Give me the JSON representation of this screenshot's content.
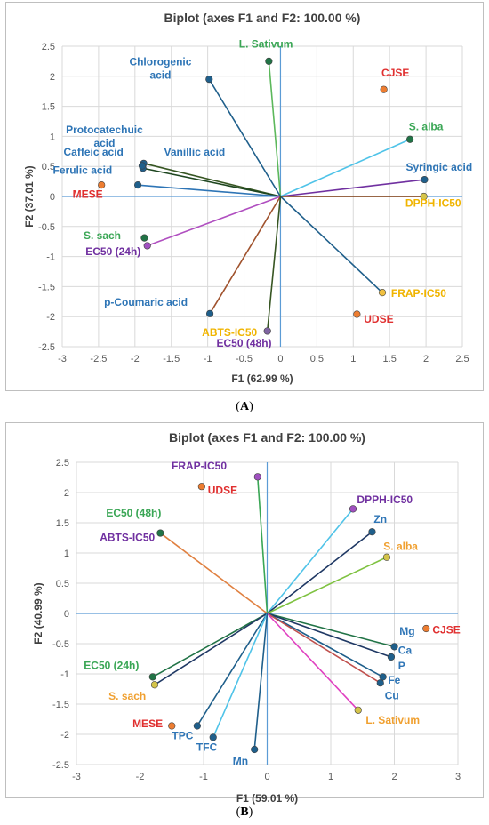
{
  "chart_data": [
    {
      "panel": "A",
      "type": "scatter",
      "title": "Biplot (axes F1 and F2: 100.00 %)",
      "xlabel": "F1 (62.99 %)",
      "ylabel": "F2 (37.01 %)",
      "xlim": [
        -3,
        2.5
      ],
      "ylim": [
        -2.5,
        2.5
      ],
      "xticks": [
        "-3",
        "-2.5",
        "-2",
        "-1.5",
        "-1",
        "-0.5",
        "0",
        "0.5",
        "1",
        "1.5",
        "2",
        "2.5"
      ],
      "yticks": [
        "2.5",
        "2",
        "1.5",
        "1",
        "0.5",
        "0",
        "-0.5",
        "-1",
        "-1.5",
        "-2",
        "-2.5"
      ],
      "grid": true,
      "points": [
        {
          "label": "L. Sativum",
          "x": -0.16,
          "y": 2.25,
          "marker": "#217346",
          "line": "#5cb85c",
          "text": "#3aa655",
          "vector": true
        },
        {
          "label": "Chlorogenic acid",
          "x": -0.98,
          "y": 1.95,
          "marker": "#1f5f8b",
          "line": "#1f5f8b",
          "text": "#2e75b6",
          "vector": true
        },
        {
          "label": "CJSE",
          "x": 1.42,
          "y": 1.78,
          "marker": "#ed7d31",
          "line": null,
          "text": "#e03030",
          "vector": false
        },
        {
          "label": "S. alba",
          "x": 1.78,
          "y": 0.95,
          "marker": "#217346",
          "line": "#4fc3e8",
          "text": "#3aa655",
          "vector": true
        },
        {
          "label": "Protocatechuic acid",
          "x": -1.88,
          "y": 0.55,
          "marker": "#1f5f8b",
          "line": "#375623",
          "text": "#2e75b6",
          "vector": true
        },
        {
          "label": "Caffeic acid",
          "x": -1.89,
          "y": 0.47,
          "marker": "#1f5f8b",
          "line": "#1e4620",
          "text": "#2e75b6",
          "vector": true
        },
        {
          "label": "Vanillic acid",
          "x": -1.9,
          "y": 0.51,
          "marker": "#1f5f8b",
          "line": null,
          "text": "#2e75b6",
          "vector": false
        },
        {
          "label": "Ferulic acid",
          "x": -1.96,
          "y": 0.19,
          "marker": "#1f5f8b",
          "line": "#2e75b6",
          "text": "#2e75b6",
          "vector": true
        },
        {
          "label": "MESE",
          "x": -2.46,
          "y": 0.19,
          "marker": "#ed7d31",
          "line": null,
          "text": "#e03030",
          "vector": false
        },
        {
          "label": "Syringic acid",
          "x": 1.98,
          "y": 0.28,
          "marker": "#1f5f8b",
          "line": "#7030a0",
          "text": "#2e75b6",
          "vector": true
        },
        {
          "label": "DPPH-IC50",
          "x": 1.97,
          "y": 0.0,
          "marker": "#d4c44a",
          "line": "#843c0c",
          "text": "#f0b400",
          "vector": true
        },
        {
          "label": "S. sach",
          "x": -1.87,
          "y": -0.69,
          "marker": "#217346",
          "line": null,
          "text": "#3aa655",
          "vector": false
        },
        {
          "label": "EC50 (24h)",
          "x": -1.83,
          "y": -0.82,
          "marker": "#a050c0",
          "line": "#b04fc0",
          "text": "#7030a0",
          "vector": true
        },
        {
          "label": "FRAP-IC50",
          "x": 1.4,
          "y": -1.6,
          "marker": "#f0c040",
          "line": "#1f5f8b",
          "text": "#f0b400",
          "vector": true
        },
        {
          "label": "UDSE",
          "x": 1.05,
          "y": -1.96,
          "marker": "#ed7d31",
          "line": null,
          "text": "#e03030",
          "vector": false
        },
        {
          "label": "p-Coumaric acid",
          "x": -0.97,
          "y": -1.95,
          "marker": "#1f5f8b",
          "line": "#a0522d",
          "text": "#2e75b6",
          "vector": true
        },
        {
          "label": "ABTS-IC50",
          "x": -0.18,
          "y": -2.24,
          "marker": "#8064a2",
          "line": "#375623",
          "text": "#f0b400",
          "vector": true
        },
        {
          "label": "EC50 (48h)",
          "x": -0.19,
          "y": -2.26,
          "marker": null,
          "line": null,
          "text": "#7030a0",
          "vector": false
        }
      ]
    },
    {
      "panel": "B",
      "type": "scatter",
      "title": "Biplot (axes F1 and F2: 100.00 %)",
      "xlabel": "F1 (59.01 %)",
      "ylabel": "F2 (40.99 %)",
      "xlim": [
        -3,
        3
      ],
      "ylim": [
        -2.5,
        2.5
      ],
      "xticks": [
        "-3",
        "-2",
        "-1",
        "0",
        "1",
        "2",
        "3"
      ],
      "yticks": [
        "2.5",
        "2",
        "1.5",
        "1",
        "0.5",
        "0",
        "-0.5",
        "-1",
        "-1.5",
        "-2",
        "-2.5"
      ],
      "grid": true,
      "points": [
        {
          "label": "FRAP-IC50",
          "x": -0.15,
          "y": 2.26,
          "marker": "#a050c0",
          "line": "#3aa655",
          "text": "#7030a0",
          "vector": true
        },
        {
          "label": "UDSE",
          "x": -1.03,
          "y": 2.1,
          "marker": "#ed7d31",
          "line": null,
          "text": "#e03030",
          "vector": false
        },
        {
          "label": "DPPH-IC50",
          "x": 1.35,
          "y": 1.73,
          "marker": "#a050c0",
          "line": "#4fc3e8",
          "text": "#7030a0",
          "vector": true
        },
        {
          "label": "Zn",
          "x": 1.65,
          "y": 1.35,
          "marker": "#1f5f8b",
          "line": "#1f3864",
          "text": "#2e75b6",
          "vector": true
        },
        {
          "label": "EC50 (48h)",
          "x": -1.68,
          "y": 1.33,
          "marker": "#217346",
          "line": "#e08040",
          "text": "#3aa655",
          "vector": true
        },
        {
          "label": "ABTS-IC50",
          "x": -1.7,
          "y": 1.33,
          "marker": null,
          "line": null,
          "text": "#7030a0",
          "vector": false
        },
        {
          "label": "S. alba",
          "x": 1.88,
          "y": 0.93,
          "marker": "#d4c44a",
          "line": "#7fc241",
          "text": "#f0a030",
          "vector": true
        },
        {
          "label": "Mg",
          "x": 2.0,
          "y": -0.55,
          "marker": "#1f5f8b",
          "line": "#217346",
          "text": "#2e75b6",
          "vector": true
        },
        {
          "label": "CJSE",
          "x": 2.5,
          "y": -0.25,
          "marker": "#ed7d31",
          "line": null,
          "text": "#e03030",
          "vector": false
        },
        {
          "label": "Ca",
          "x": 1.95,
          "y": -0.72,
          "marker": "#1f5f8b",
          "line": "#1f3864",
          "text": "#2e75b6",
          "vector": true
        },
        {
          "label": "P",
          "x": 1.92,
          "y": -0.8,
          "marker": null,
          "line": null,
          "text": "#2e75b6",
          "vector": false
        },
        {
          "label": "Fe",
          "x": 1.82,
          "y": -1.05,
          "marker": "#1f5f8b",
          "line": "#1f5f8b",
          "text": "#2e75b6",
          "vector": true
        },
        {
          "label": "Cu",
          "x": 1.78,
          "y": -1.15,
          "marker": "#1f5f8b",
          "line": "#c0504d",
          "text": "#2e75b6",
          "vector": true
        },
        {
          "label": "L. Sativum",
          "x": 1.43,
          "y": -1.6,
          "marker": "#d4c44a",
          "line": "#e040c0",
          "text": "#f0a030",
          "vector": true
        },
        {
          "label": "EC50 (24h)",
          "x": -1.8,
          "y": -1.05,
          "marker": "#217346",
          "line": "#217346",
          "text": "#3aa655",
          "vector": true
        },
        {
          "label": "S. sach",
          "x": -1.77,
          "y": -1.18,
          "marker": "#d4c44a",
          "line": "#1f3864",
          "text": "#f0a030",
          "vector": true
        },
        {
          "label": "MESE",
          "x": -1.5,
          "y": -1.86,
          "marker": "#ed7d31",
          "line": null,
          "text": "#e03030",
          "vector": false
        },
        {
          "label": "TPC",
          "x": -1.1,
          "y": -1.86,
          "marker": "#1f5f8b",
          "line": "#1f5f8b",
          "text": "#2e75b6",
          "vector": true
        },
        {
          "label": "TFC",
          "x": -0.85,
          "y": -2.05,
          "marker": "#1f5f8b",
          "line": "#4fc3e8",
          "text": "#2e75b6",
          "vector": true
        },
        {
          "label": "Mn",
          "x": -0.2,
          "y": -2.25,
          "marker": "#1f5f8b",
          "line": "#1f5f8b",
          "text": "#2e75b6",
          "vector": true
        }
      ]
    }
  ],
  "panel_letters": [
    "(A)",
    "(B)"
  ]
}
